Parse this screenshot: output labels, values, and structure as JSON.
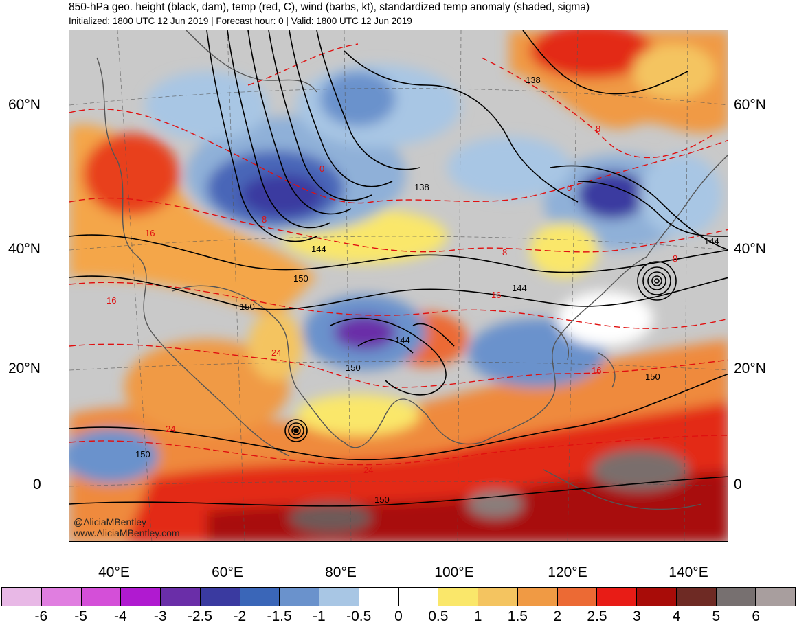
{
  "header": {
    "title": "850-hPa geo. height (black, dam), temp (red, C), wind (barbs, kt), standardized temp anomaly (shaded, sigma)",
    "subtitle": "Initialized: 1800 UTC 12 Jun 2019 | Forecast hour: 0 | Valid: 1800 UTC 12 Jun 2019"
  },
  "axes": {
    "lat_left": [
      "60°N",
      "40°N",
      "20°N",
      "0"
    ],
    "lat_right": [
      "60°N",
      "40°N",
      "20°N",
      "0"
    ],
    "lon": [
      "40°E",
      "60°E",
      "80°E",
      "100°E",
      "120°E",
      "140°E"
    ]
  },
  "contour_labels": {
    "height": [
      "138",
      "138",
      "144",
      "150",
      "150",
      "144",
      "144",
      "150",
      "150",
      "150",
      "144",
      "150"
    ],
    "temp": [
      "8",
      "0",
      "8",
      "16",
      "16",
      "24",
      "8",
      "0",
      "8",
      "16",
      "24",
      "16",
      "24"
    ]
  },
  "credit": {
    "handle": "@AliciaMBentley",
    "site": "www.AliciaMBentley.com"
  },
  "colorbar": {
    "colors": [
      "#e8b8e6",
      "#e07ee0",
      "#d44fd8",
      "#b01ad0",
      "#6a2ea8",
      "#3a3aa0",
      "#3a66b8",
      "#6a92cc",
      "#a8c6e4",
      "#ffffff",
      "#ffffff",
      "#fae76a",
      "#f4c460",
      "#f09a44",
      "#ec6a34",
      "#e81c16",
      "#a80c08",
      "#6e2a24",
      "#777070",
      "#a89e9e"
    ],
    "labels": [
      "-6",
      "-5",
      "-4",
      "-3",
      "-2.5",
      "-2",
      "-1.5",
      "-1",
      "-0.5",
      "0",
      "0.5",
      "1",
      "1.5",
      "2",
      "2.5",
      "3",
      "4",
      "5",
      "6"
    ]
  }
}
